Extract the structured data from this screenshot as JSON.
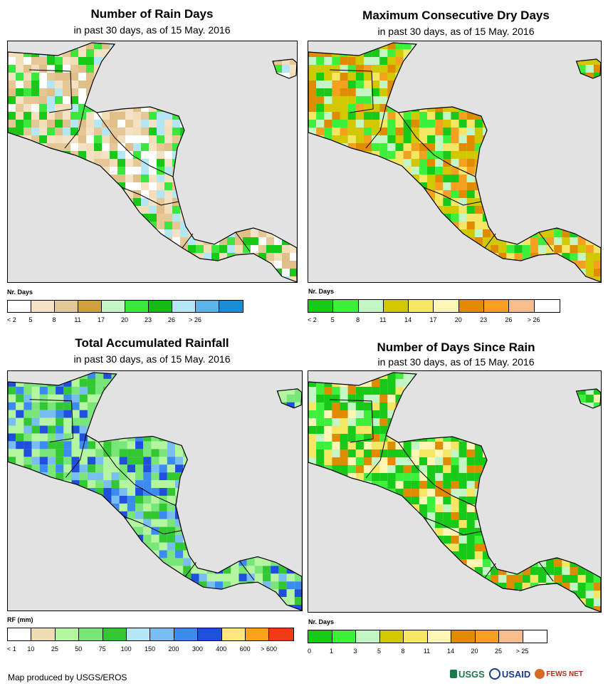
{
  "colors": {
    "ocean": "#e2e2e2",
    "coast": "#000000"
  },
  "panels": [
    {
      "id": "rain-days",
      "title": "Number of Rain Days",
      "subtitle": "in past 30 days, as of 15 May. 2016",
      "legend_title": "Nr. Days",
      "legend": [
        {
          "label": "< 2",
          "color": "#ffffff"
        },
        {
          "label": "5",
          "color": "#f5e2c4"
        },
        {
          "label": "8",
          "color": "#e3c795"
        },
        {
          "label": "11",
          "color": "#cfa040"
        },
        {
          "label": "17",
          "color": "#c4f5c4"
        },
        {
          "label": "20",
          "color": "#3ce63c"
        },
        {
          "label": "23",
          "color": "#19b919"
        },
        {
          "label": "26",
          "color": "#b4e6f5"
        },
        {
          "label": "> 26",
          "color": "#5ab4e6"
        },
        {
          "label": "",
          "color": "#1e8cd2"
        }
      ],
      "palette": [
        "#f2deb8",
        "#e6c896",
        "#e0c088",
        "#3ce63c",
        "#19c919",
        "#b4e6f5",
        "#f5e2c4",
        "#ffffff"
      ]
    },
    {
      "id": "dry-days",
      "title": "Maximum Consecutive Dry Days",
      "subtitle": "in past 30 days, as of 15 May. 2016",
      "legend_title": "Nr. Days",
      "legend": [
        {
          "label": "< 2",
          "color": "#19c919"
        },
        {
          "label": "5",
          "color": "#3cf03c"
        },
        {
          "label": "8",
          "color": "#c4f5c4"
        },
        {
          "label": "11",
          "color": "#d2c800"
        },
        {
          "label": "14",
          "color": "#f5e664"
        },
        {
          "label": "17",
          "color": "#fff5b4"
        },
        {
          "label": "20",
          "color": "#e08c00"
        },
        {
          "label": "23",
          "color": "#f5a01e"
        },
        {
          "label": "26",
          "color": "#f5be8c"
        },
        {
          "label": "> 26",
          "color": "#ffffff"
        }
      ],
      "palette": [
        "#d2c800",
        "#d2c800",
        "#c4f5c4",
        "#3cf03c",
        "#19c919",
        "#f5e664",
        "#e08c00",
        "#f5a01e"
      ]
    },
    {
      "id": "rainfall",
      "title": "Total Accumulated Rainfall",
      "subtitle": "in past 30 days, as of 15 May. 2016",
      "legend_title": "RF (mm)",
      "legend": [
        {
          "label": "< 1",
          "color": "#ffffff"
        },
        {
          "label": "10",
          "color": "#f0dcb4"
        },
        {
          "label": "25",
          "color": "#b4f5a0"
        },
        {
          "label": "50",
          "color": "#78e678"
        },
        {
          "label": "75",
          "color": "#32c832"
        },
        {
          "label": "100",
          "color": "#b4e6f5"
        },
        {
          "label": "150",
          "color": "#78bef0"
        },
        {
          "label": "200",
          "color": "#3c8cf0"
        },
        {
          "label": "300",
          "color": "#1e50dc"
        },
        {
          "label": "400",
          "color": "#ffe678"
        },
        {
          "label": "600",
          "color": "#ffa01e"
        },
        {
          "label": "> 600",
          "color": "#f03c14"
        }
      ],
      "palette": [
        "#78e678",
        "#78e678",
        "#b4f5a0",
        "#32c832",
        "#78bef0",
        "#3c8cf0",
        "#1e50dc",
        "#b4f5a0"
      ]
    },
    {
      "id": "days-since-rain",
      "title": "Number of Days Since Rain",
      "subtitle": "in past 30 days, as of 15 May. 2016",
      "legend_title": "Nr. Days",
      "legend": [
        {
          "label": "0",
          "color": "#19c919"
        },
        {
          "label": "1",
          "color": "#3cf03c"
        },
        {
          "label": "3",
          "color": "#c4f5c4"
        },
        {
          "label": "5",
          "color": "#d2c800"
        },
        {
          "label": "8",
          "color": "#f5e664"
        },
        {
          "label": "11",
          "color": "#fff5b4"
        },
        {
          "label": "14",
          "color": "#e08c00"
        },
        {
          "label": "20",
          "color": "#f5a01e"
        },
        {
          "label": "25",
          "color": "#f5be8c"
        },
        {
          "label": "> 25",
          "color": "#ffffff"
        }
      ],
      "palette": [
        "#19c919",
        "#19c919",
        "#fff5b4",
        "#3cf03c",
        "#f5e664",
        "#c4f5c4",
        "#e08c00",
        "#19c919"
      ]
    }
  ],
  "footer": "Map produced by USGS/EROS",
  "logos": [
    "USGS",
    "USAID",
    "FEWS NET"
  ]
}
